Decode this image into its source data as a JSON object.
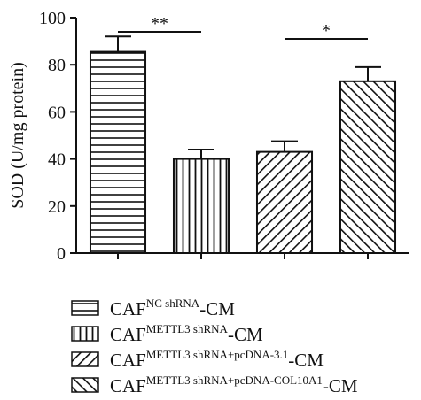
{
  "chart_data": {
    "type": "bar",
    "ylabel": "SOD (U/mg protein)",
    "ylim": [
      0,
      100
    ],
    "yticks": [
      0,
      20,
      40,
      60,
      80,
      100
    ],
    "series": [
      {
        "name": "CAF NC shRNA-CM",
        "label_base": "CAF",
        "label_sup": "NC shRNA",
        "label_suffix": "-CM",
        "value": 85.5,
        "error": 6.5,
        "pattern": "horizontal"
      },
      {
        "name": "CAF METTL3 shRNA-CM",
        "label_base": "CAF",
        "label_sup": "METTL3 shRNA",
        "label_suffix": "-CM",
        "value": 40,
        "error": 4,
        "pattern": "vertical"
      },
      {
        "name": "CAF METTL3 shRNA+pcDNA-3.1-CM",
        "label_base": "CAF",
        "label_sup": "METTL3 shRNA+pcDNA-3.1",
        "label_suffix": "-CM",
        "value": 43,
        "error": 4.5,
        "pattern": "diag-up"
      },
      {
        "name": "CAF METTL3 shRNA+pcDNA-COL10A1-CM",
        "label_base": "CAF",
        "label_sup": "METTL3 shRNA+pcDNA-COL10A1",
        "label_suffix": "-CM",
        "value": 73,
        "error": 6,
        "pattern": "diag-down"
      }
    ],
    "significance": [
      {
        "from": 0,
        "to": 1,
        "label": "**",
        "y": 94
      },
      {
        "from": 2,
        "to": 3,
        "label": "*",
        "y": 91
      }
    ],
    "grid": false,
    "legend_position": "bottom"
  }
}
